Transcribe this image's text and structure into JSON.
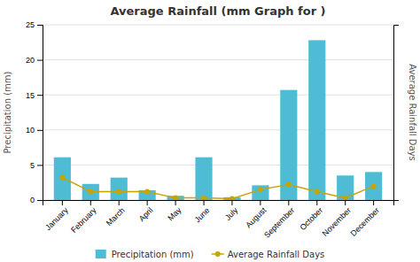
{
  "chart_data": {
    "type": "bar",
    "title": "Average Rainfall (mm Graph for )",
    "categories": [
      "January",
      "February",
      "March",
      "April",
      "May",
      "June",
      "July",
      "August",
      "September",
      "October",
      "November",
      "December"
    ],
    "series": [
      {
        "name": "Precipitation (mm)",
        "type": "bar",
        "color": "#4DBCD4",
        "values": [
          6.1,
          2.3,
          3.2,
          1.4,
          0.6,
          6.1,
          0.4,
          2.1,
          15.7,
          22.8,
          3.5,
          4.0
        ]
      },
      {
        "name": "Average Rainfall Days",
        "type": "line",
        "color": "#C8A400",
        "marker": "circle",
        "axis": "y2",
        "values": [
          3.2,
          1.2,
          1.2,
          1.2,
          0.3,
          0.3,
          0.2,
          1.5,
          2.2,
          1.2,
          0.3,
          2.0
        ]
      }
    ],
    "ylabel": "Precipitation (mm)",
    "y2label": "Average Rainfall Days",
    "ylim": [
      0,
      25
    ],
    "yticks": [
      0,
      5,
      10,
      15,
      20,
      25
    ],
    "y2lim": [
      0,
      25
    ],
    "y2ticks": [],
    "grid": true,
    "legend": "bottom"
  }
}
